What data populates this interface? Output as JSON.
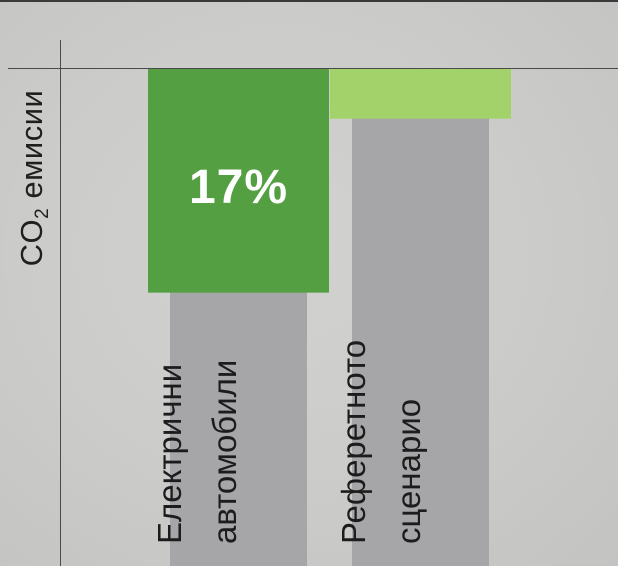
{
  "chart_data": {
    "type": "bar",
    "ylabel_main": "CO",
    "ylabel_sub": "2",
    "ylabel_rest": " емисии",
    "categories": [
      {
        "line1": "Електрични",
        "line2": "автомобили"
      },
      {
        "line1": "Реферетното",
        "line2": "сценарио"
      }
    ],
    "reduction_pct": [
      0.45,
      0.1
    ],
    "annotation": "17%",
    "colors": {
      "base_bar": "#a6a6a8",
      "reduction_ev": "#559f43",
      "reduction_ref": "#a3d16a"
    }
  }
}
